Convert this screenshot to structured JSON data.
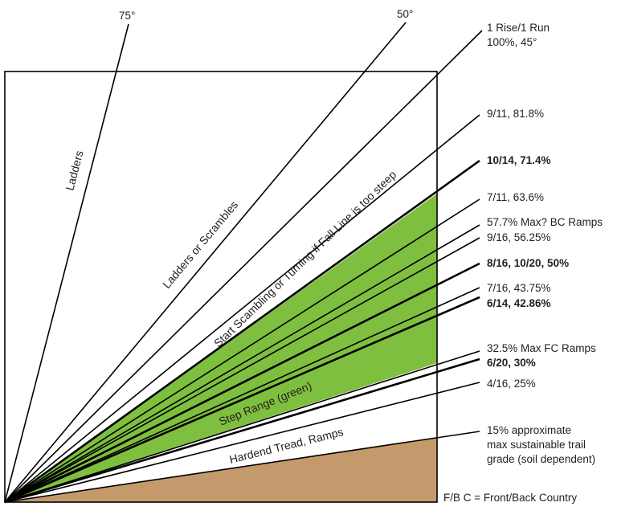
{
  "colors": {
    "step_range": "#7fbf3f",
    "soil": "#c49a6c",
    "line": "#000000",
    "text": "#231f20"
  },
  "angle_labels": {
    "deg75": "75°",
    "deg50": "50°"
  },
  "grade_labels": {
    "rise_run_line1": "1 Rise/1 Run",
    "rise_run_line2": "100%, 45°",
    "g81_8": "9/11, 81.8%",
    "g71_4": "10/14, 71.4%",
    "g63_6": "7/11, 63.6%",
    "g57_7": "57.7% Max? BC Ramps",
    "g56_25": "9/16, 56.25%",
    "g50": "8/16, 10/20, 50%",
    "g43_75": "7/16, 43.75%",
    "g42_86": "6/14, 42.86%",
    "g32_5": "32.5% Max FC Ramps",
    "g30": "6/20, 30%",
    "g25": "4/16, 25%",
    "sustainable_line1": "15% approximate",
    "sustainable_line2": "max sustainable trail",
    "sustainable_line3": "grade (soil dependent)"
  },
  "zone_labels": {
    "ladders": "Ladders",
    "ladders_scrambles": "Ladders or Scrambles",
    "start_scrambling": "Start Scambling or Turning if Fall Line is too steep",
    "step_range": "Step Range (green)",
    "hardened_tread": "Hardend Tread, Ramps"
  },
  "legend": {
    "note": "F/B C = Front/Back Country"
  }
}
